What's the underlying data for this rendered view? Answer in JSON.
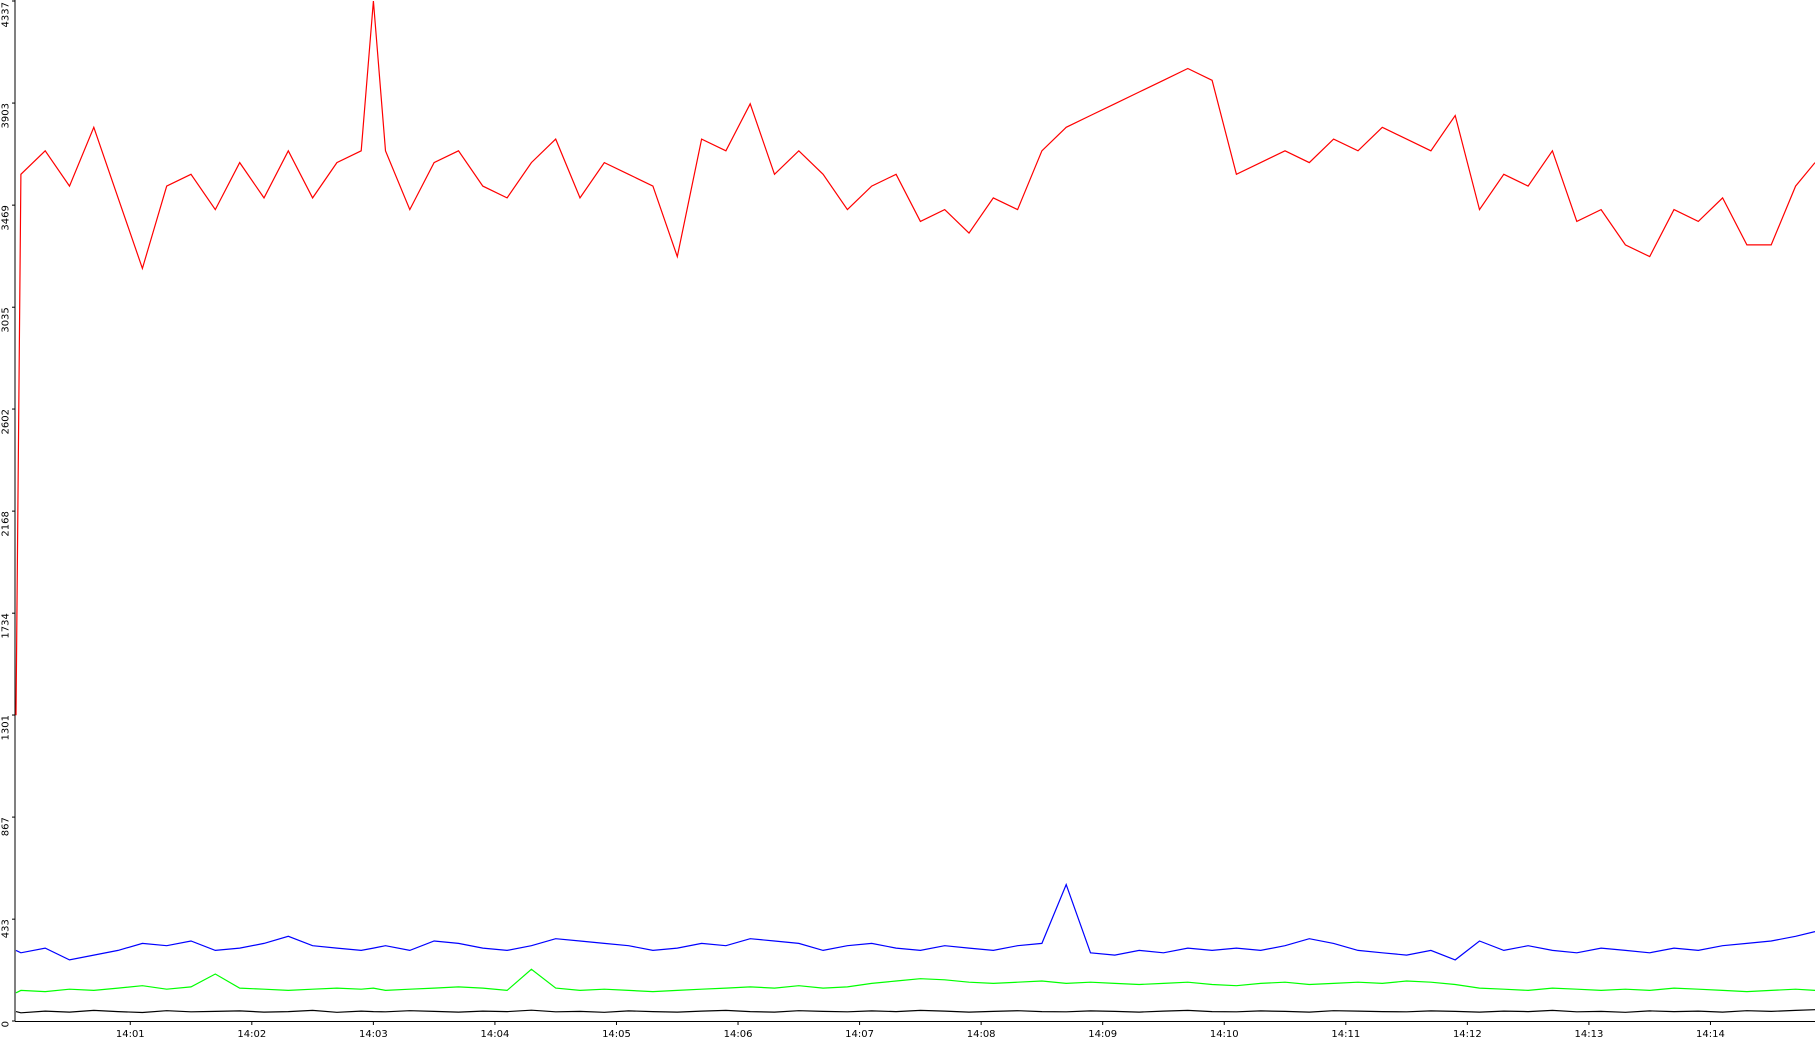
{
  "chart_data": {
    "type": "line",
    "x": [
      0.06,
      0.1,
      0.3,
      0.5,
      0.7,
      0.9,
      1.1,
      1.3,
      1.5,
      1.7,
      1.9,
      2.1,
      2.3,
      2.5,
      2.7,
      2.9,
      3.0,
      3.1,
      3.3,
      3.5,
      3.7,
      3.9,
      4.1,
      4.3,
      4.5,
      4.7,
      4.9,
      5.1,
      5.3,
      5.5,
      5.7,
      5.9,
      6.1,
      6.3,
      6.5,
      6.7,
      6.9,
      7.1,
      7.3,
      7.5,
      7.7,
      7.9,
      8.1,
      8.3,
      8.5,
      8.7,
      8.9,
      9.1,
      9.3,
      9.5,
      9.7,
      9.9,
      10.1,
      10.3,
      10.5,
      10.7,
      10.9,
      11.1,
      11.3,
      11.5,
      11.7,
      11.9,
      12.1,
      12.3,
      12.5,
      12.7,
      12.9,
      13.1,
      13.3,
      13.5,
      13.7,
      13.9,
      14.1,
      14.3,
      14.5,
      14.7,
      14.86
    ],
    "series": [
      {
        "color": "#ff0000",
        "values": [
          1300,
          3600,
          3700,
          3550,
          3800,
          3500,
          3200,
          3550,
          3600,
          3450,
          3650,
          3500,
          3700,
          3500,
          3650,
          3700,
          4337,
          3700,
          3450,
          3650,
          3700,
          3550,
          3500,
          3650,
          3750,
          3500,
          3650,
          3600,
          3550,
          3250,
          3750,
          3700,
          3900,
          3600,
          3700,
          3600,
          3450,
          3550,
          3600,
          3400,
          3450,
          3350,
          3500,
          3450,
          3700,
          3800,
          3850,
          3900,
          3950,
          4000,
          4050,
          4000,
          3600,
          3650,
          3700,
          3650,
          3750,
          3700,
          3800,
          3750,
          3700,
          3850,
          3450,
          3600,
          3550,
          3700,
          3400,
          3450,
          3300,
          3250,
          3450,
          3400,
          3500,
          3300,
          3300,
          3550,
          3650
        ]
      },
      {
        "color": "#0000ff",
        "values": [
          300,
          290,
          310,
          260,
          280,
          300,
          330,
          320,
          340,
          300,
          310,
          330,
          360,
          320,
          310,
          300,
          310,
          320,
          300,
          340,
          330,
          310,
          300,
          320,
          350,
          340,
          330,
          320,
          300,
          310,
          330,
          320,
          350,
          340,
          330,
          300,
          320,
          330,
          310,
          300,
          320,
          310,
          300,
          320,
          330,
          580,
          290,
          280,
          300,
          290,
          310,
          300,
          310,
          300,
          320,
          350,
          330,
          300,
          290,
          280,
          300,
          260,
          340,
          300,
          320,
          300,
          290,
          310,
          300,
          290,
          310,
          300,
          320,
          330,
          340,
          360,
          380
        ]
      },
      {
        "color": "#00ff00",
        "values": [
          120,
          130,
          125,
          135,
          130,
          140,
          150,
          135,
          145,
          200,
          140,
          135,
          130,
          135,
          140,
          135,
          140,
          130,
          135,
          140,
          145,
          140,
          130,
          220,
          140,
          130,
          135,
          130,
          125,
          130,
          135,
          140,
          145,
          140,
          150,
          140,
          145,
          160,
          170,
          180,
          175,
          165,
          160,
          165,
          170,
          160,
          165,
          160,
          155,
          160,
          165,
          155,
          150,
          160,
          165,
          155,
          160,
          165,
          160,
          170,
          165,
          155,
          140,
          135,
          130,
          140,
          135,
          130,
          135,
          130,
          140,
          135,
          130,
          125,
          130,
          135,
          130
        ]
      },
      {
        "color": "#000000",
        "values": [
          40,
          35,
          42,
          38,
          45,
          40,
          36,
          44,
          39,
          41,
          43,
          38,
          40,
          45,
          37,
          42,
          40,
          39,
          44,
          41,
          38,
          42,
          40,
          46,
          39,
          41,
          37,
          43,
          40,
          38,
          42,
          45,
          40,
          38,
          44,
          41,
          39,
          43,
          40,
          45,
          42,
          38,
          41,
          44,
          40,
          39,
          43,
          41,
          38,
          42,
          45,
          40,
          39,
          43,
          41,
          38,
          44,
          42,
          40,
          39,
          43,
          41,
          38,
          42,
          40,
          45,
          39,
          41,
          37,
          43,
          40,
          42,
          38,
          44,
          41,
          45,
          48
        ]
      }
    ],
    "xlim": [
      0.06,
      14.86
    ],
    "xticks": [
      {
        "value": 1,
        "label": "14:01"
      },
      {
        "value": 2,
        "label": "14:02"
      },
      {
        "value": 3,
        "label": "14:03"
      },
      {
        "value": 4,
        "label": "14:04"
      },
      {
        "value": 5,
        "label": "14:05"
      },
      {
        "value": 6,
        "label": "14:06"
      },
      {
        "value": 7,
        "label": "14:07"
      },
      {
        "value": 8,
        "label": "14:08"
      },
      {
        "value": 9,
        "label": "14:09"
      },
      {
        "value": 10,
        "label": "14:10"
      },
      {
        "value": 11,
        "label": "14:11"
      },
      {
        "value": 12,
        "label": "14:12"
      },
      {
        "value": 13,
        "label": "14:13"
      },
      {
        "value": 14,
        "label": "14:14"
      }
    ],
    "ylim": [
      0,
      4337
    ],
    "yticks": [
      0,
      433,
      867,
      1301,
      1734,
      2168,
      2602,
      3035,
      3469,
      3903,
      4337
    ],
    "grid": false
  }
}
